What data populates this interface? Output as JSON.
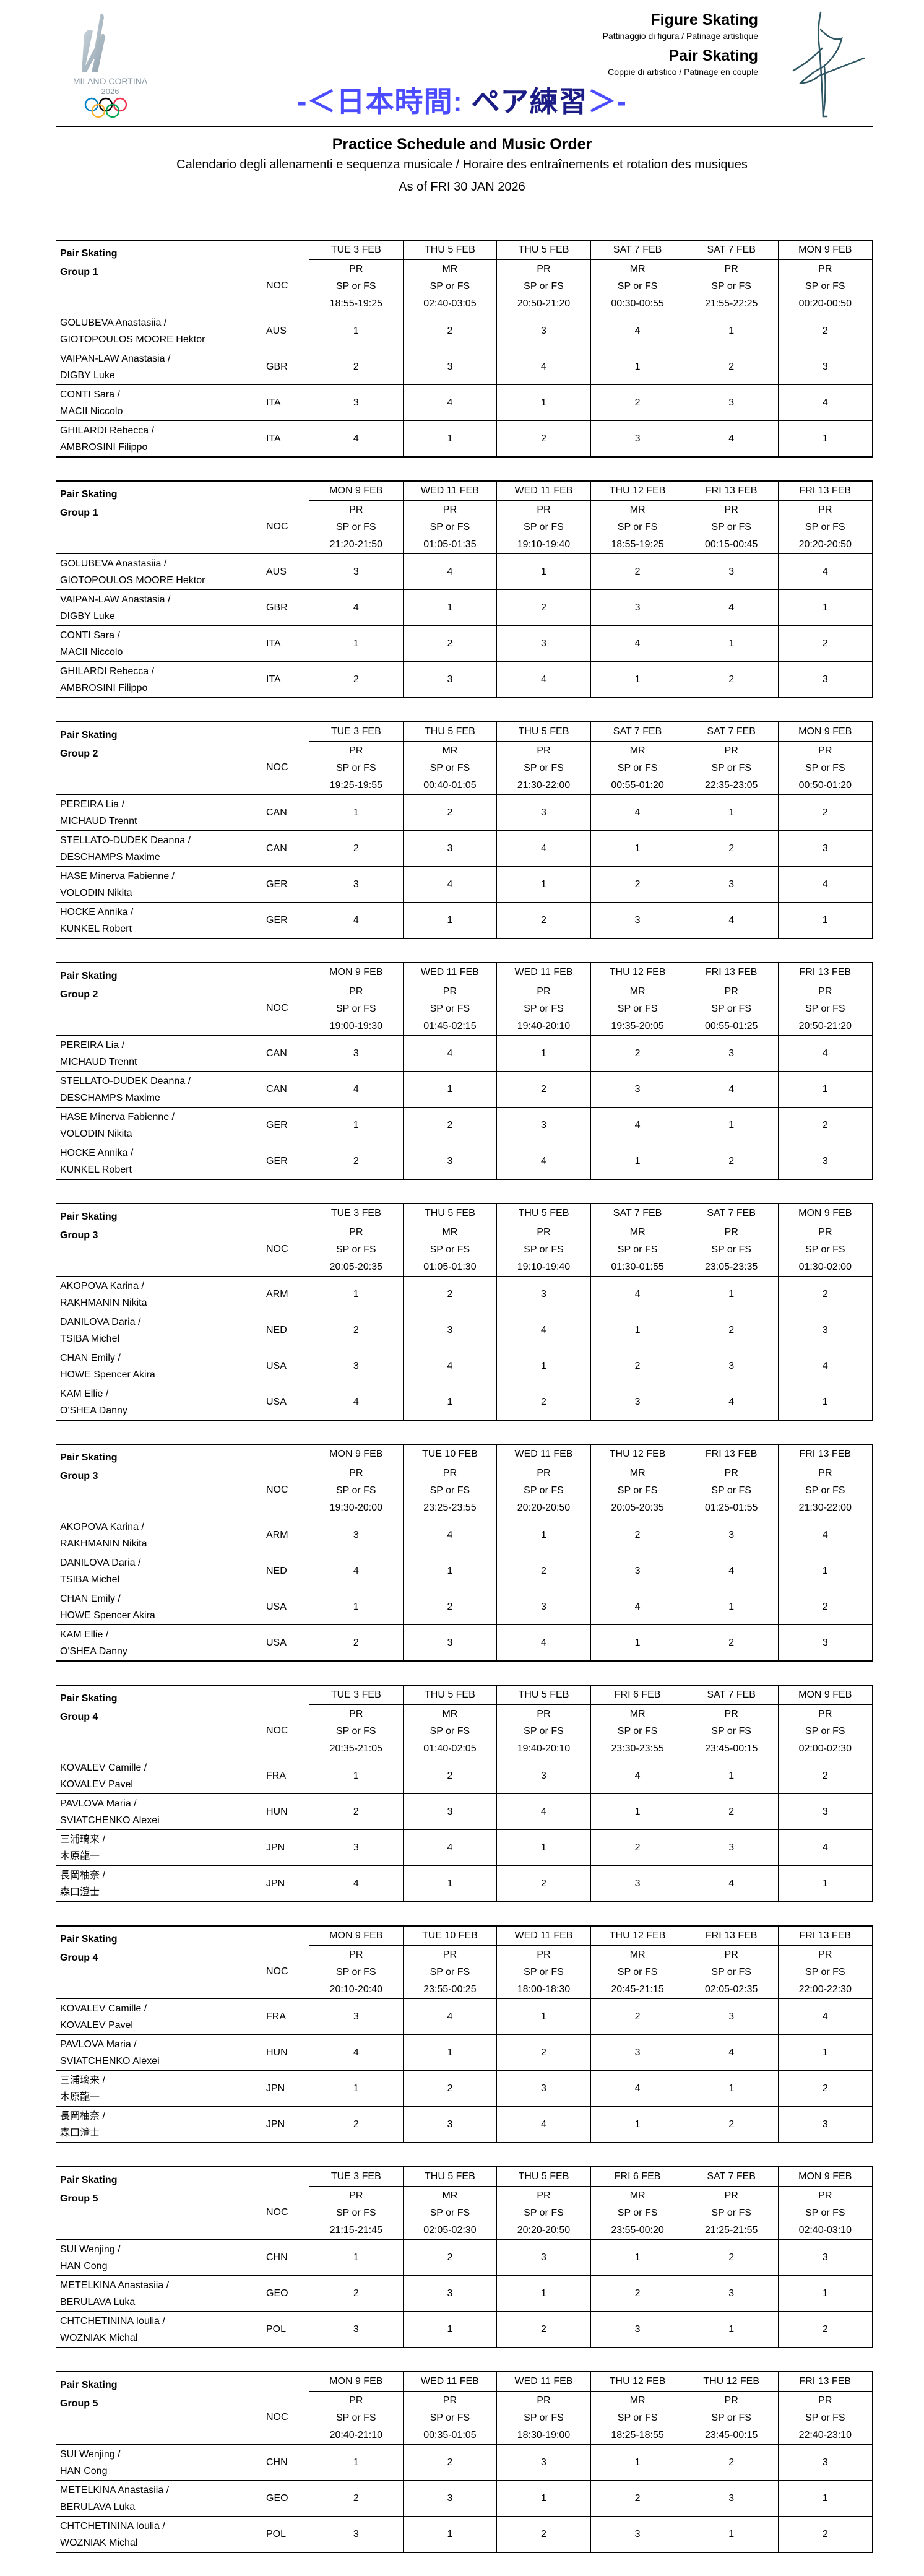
{
  "header": {
    "logo_text": "MILANO CORTINA 2026",
    "discipline": "Figure Skating",
    "discipline_sub": "Pattinaggio di figura / Patinage artistique",
    "event": "Pair Skating",
    "event_sub": "Coppie di artistico / Patinage en couple",
    "banner_left": "-＜日本時間: ",
    "banner_mid": "ペア練習",
    "banner_right": "＞-",
    "title": "Practice Schedule and Music Order",
    "subtitle": "Calendario degli allenamenti e sequenza musicale / Horaire des entraînements et rotation des musiques",
    "as_of": "As of FRI 30 JAN 2026",
    "colors": {
      "banner_light": "#4b4bff",
      "banner_dark": "#1c1c86"
    }
  },
  "labels": {
    "event": "Pair Skating",
    "noc": "NOC"
  },
  "tables": [
    {
      "group": "Group 1",
      "columns": [
        {
          "date": "TUE 3 FEB",
          "type": "PR",
          "seg": "SP or FS",
          "time": "18:55-19:25"
        },
        {
          "date": "THU 5 FEB",
          "type": "MR",
          "seg": "SP or FS",
          "time": "02:40-03:05"
        },
        {
          "date": "THU 5 FEB",
          "type": "PR",
          "seg": "SP or FS",
          "time": "20:50-21:20"
        },
        {
          "date": "SAT 7 FEB",
          "type": "MR",
          "seg": "SP or FS",
          "time": "00:30-00:55"
        },
        {
          "date": "SAT 7 FEB",
          "type": "PR",
          "seg": "SP or FS",
          "time": "21:55-22:25"
        },
        {
          "date": "MON 9 FEB",
          "type": "PR",
          "seg": "SP or FS",
          "time": "00:20-00:50"
        }
      ],
      "rows": [
        {
          "line1": "GOLUBEVA Anastasiia /",
          "line2": "GIOTOPOULOS MOORE Hektor",
          "noc": "AUS",
          "order": [
            "1",
            "2",
            "3",
            "4",
            "1",
            "2"
          ]
        },
        {
          "line1": "VAIPAN-LAW Anastasia /",
          "line2": "DIGBY Luke",
          "noc": "GBR",
          "order": [
            "2",
            "3",
            "4",
            "1",
            "2",
            "3"
          ]
        },
        {
          "line1": "CONTI Sara /",
          "line2": "MACII Niccolo",
          "noc": "ITA",
          "order": [
            "3",
            "4",
            "1",
            "2",
            "3",
            "4"
          ]
        },
        {
          "line1": "GHILARDI Rebecca /",
          "line2": "AMBROSINI Filippo",
          "noc": "ITA",
          "order": [
            "4",
            "1",
            "2",
            "3",
            "4",
            "1"
          ]
        }
      ]
    },
    {
      "group": "Group 1",
      "columns": [
        {
          "date": "MON 9 FEB",
          "type": "PR",
          "seg": "SP or FS",
          "time": "21:20-21:50"
        },
        {
          "date": "WED 11 FEB",
          "type": "PR",
          "seg": "SP or FS",
          "time": "01:05-01:35"
        },
        {
          "date": "WED 11 FEB",
          "type": "PR",
          "seg": "SP or FS",
          "time": "19:10-19:40"
        },
        {
          "date": "THU 12 FEB",
          "type": "MR",
          "seg": "SP or FS",
          "time": "18:55-19:25"
        },
        {
          "date": "FRI 13 FEB",
          "type": "PR",
          "seg": "SP or FS",
          "time": "00:15-00:45"
        },
        {
          "date": "FRI 13 FEB",
          "type": "PR",
          "seg": "SP or FS",
          "time": "20:20-20:50"
        }
      ],
      "rows": [
        {
          "line1": "GOLUBEVA Anastasiia /",
          "line2": "GIOTOPOULOS MOORE Hektor",
          "noc": "AUS",
          "order": [
            "3",
            "4",
            "1",
            "2",
            "3",
            "4"
          ]
        },
        {
          "line1": "VAIPAN-LAW Anastasia /",
          "line2": "DIGBY Luke",
          "noc": "GBR",
          "order": [
            "4",
            "1",
            "2",
            "3",
            "4",
            "1"
          ]
        },
        {
          "line1": "CONTI Sara /",
          "line2": "MACII Niccolo",
          "noc": "ITA",
          "order": [
            "1",
            "2",
            "3",
            "4",
            "1",
            "2"
          ]
        },
        {
          "line1": "GHILARDI Rebecca /",
          "line2": "AMBROSINI Filippo",
          "noc": "ITA",
          "order": [
            "2",
            "3",
            "4",
            "1",
            "2",
            "3"
          ]
        }
      ]
    },
    {
      "group": "Group 2",
      "columns": [
        {
          "date": "TUE 3 FEB",
          "type": "PR",
          "seg": "SP or FS",
          "time": "19:25-19:55"
        },
        {
          "date": "THU 5 FEB",
          "type": "MR",
          "seg": "SP or FS",
          "time": "00:40-01:05"
        },
        {
          "date": "THU 5 FEB",
          "type": "PR",
          "seg": "SP or FS",
          "time": "21:30-22:00"
        },
        {
          "date": "SAT 7 FEB",
          "type": "MR",
          "seg": "SP or FS",
          "time": "00:55-01:20"
        },
        {
          "date": "SAT 7 FEB",
          "type": "PR",
          "seg": "SP or FS",
          "time": "22:35-23:05"
        },
        {
          "date": "MON 9 FEB",
          "type": "PR",
          "seg": "SP or FS",
          "time": "00:50-01:20"
        }
      ],
      "rows": [
        {
          "line1": "PEREIRA Lia /",
          "line2": "MICHAUD Trennt",
          "noc": "CAN",
          "order": [
            "1",
            "2",
            "3",
            "4",
            "1",
            "2"
          ]
        },
        {
          "line1": "STELLATO-DUDEK Deanna /",
          "line2": "DESCHAMPS Maxime",
          "noc": "CAN",
          "order": [
            "2",
            "3",
            "4",
            "1",
            "2",
            "3"
          ]
        },
        {
          "line1": "HASE Minerva Fabienne /",
          "line2": "VOLODIN Nikita",
          "noc": "GER",
          "order": [
            "3",
            "4",
            "1",
            "2",
            "3",
            "4"
          ]
        },
        {
          "line1": "HOCKE Annika /",
          "line2": "KUNKEL Robert",
          "noc": "GER",
          "order": [
            "4",
            "1",
            "2",
            "3",
            "4",
            "1"
          ]
        }
      ]
    },
    {
      "group": "Group 2",
      "columns": [
        {
          "date": "MON 9 FEB",
          "type": "PR",
          "seg": "SP or FS",
          "time": "19:00-19:30"
        },
        {
          "date": "WED 11 FEB",
          "type": "PR",
          "seg": "SP or FS",
          "time": "01:45-02:15"
        },
        {
          "date": "WED 11 FEB",
          "type": "PR",
          "seg": "SP or FS",
          "time": "19:40-20:10"
        },
        {
          "date": "THU 12 FEB",
          "type": "MR",
          "seg": "SP or FS",
          "time": "19:35-20:05"
        },
        {
          "date": "FRI 13 FEB",
          "type": "PR",
          "seg": "SP or FS",
          "time": "00:55-01:25"
        },
        {
          "date": "FRI 13 FEB",
          "type": "PR",
          "seg": "SP or FS",
          "time": "20:50-21:20"
        }
      ],
      "rows": [
        {
          "line1": "PEREIRA Lia /",
          "line2": "MICHAUD Trennt",
          "noc": "CAN",
          "order": [
            "3",
            "4",
            "1",
            "2",
            "3",
            "4"
          ]
        },
        {
          "line1": "STELLATO-DUDEK Deanna /",
          "line2": "DESCHAMPS Maxime",
          "noc": "CAN",
          "order": [
            "4",
            "1",
            "2",
            "3",
            "4",
            "1"
          ]
        },
        {
          "line1": "HASE Minerva Fabienne /",
          "line2": "VOLODIN Nikita",
          "noc": "GER",
          "order": [
            "1",
            "2",
            "3",
            "4",
            "1",
            "2"
          ]
        },
        {
          "line1": "HOCKE Annika /",
          "line2": "KUNKEL Robert",
          "noc": "GER",
          "order": [
            "2",
            "3",
            "4",
            "1",
            "2",
            "3"
          ]
        }
      ]
    },
    {
      "group": "Group 3",
      "columns": [
        {
          "date": "TUE 3 FEB",
          "type": "PR",
          "seg": "SP or FS",
          "time": "20:05-20:35"
        },
        {
          "date": "THU 5 FEB",
          "type": "MR",
          "seg": "SP or FS",
          "time": "01:05-01:30"
        },
        {
          "date": "THU 5 FEB",
          "type": "PR",
          "seg": "SP or FS",
          "time": "19:10-19:40"
        },
        {
          "date": "SAT 7 FEB",
          "type": "MR",
          "seg": "SP or FS",
          "time": "01:30-01:55"
        },
        {
          "date": "SAT 7 FEB",
          "type": "PR",
          "seg": "SP or FS",
          "time": "23:05-23:35"
        },
        {
          "date": "MON 9 FEB",
          "type": "PR",
          "seg": "SP or FS",
          "time": "01:30-02:00"
        }
      ],
      "rows": [
        {
          "line1": "AKOPOVA Karina /",
          "line2": "RAKHMANIN Nikita",
          "noc": "ARM",
          "order": [
            "1",
            "2",
            "3",
            "4",
            "1",
            "2"
          ]
        },
        {
          "line1": "DANILOVA Daria /",
          "line2": "TSIBA Michel",
          "noc": "NED",
          "order": [
            "2",
            "3",
            "4",
            "1",
            "2",
            "3"
          ]
        },
        {
          "line1": "CHAN Emily /",
          "line2": "HOWE Spencer Akira",
          "noc": "USA",
          "order": [
            "3",
            "4",
            "1",
            "2",
            "3",
            "4"
          ]
        },
        {
          "line1": "KAM Ellie /",
          "line2": "O'SHEA Danny",
          "noc": "USA",
          "order": [
            "4",
            "1",
            "2",
            "3",
            "4",
            "1"
          ]
        }
      ]
    },
    {
      "group": "Group 3",
      "columns": [
        {
          "date": "MON 9 FEB",
          "type": "PR",
          "seg": "SP or FS",
          "time": "19:30-20:00"
        },
        {
          "date": "TUE 10 FEB",
          "type": "PR",
          "seg": "SP or FS",
          "time": "23:25-23:55"
        },
        {
          "date": "WED 11 FEB",
          "type": "PR",
          "seg": "SP or FS",
          "time": "20:20-20:50"
        },
        {
          "date": "THU 12 FEB",
          "type": "MR",
          "seg": "SP or FS",
          "time": "20:05-20:35"
        },
        {
          "date": "FRI 13 FEB",
          "type": "PR",
          "seg": "SP or FS",
          "time": "01:25-01:55"
        },
        {
          "date": "FRI 13 FEB",
          "type": "PR",
          "seg": "SP or FS",
          "time": "21:30-22:00"
        }
      ],
      "rows": [
        {
          "line1": "AKOPOVA Karina /",
          "line2": "RAKHMANIN Nikita",
          "noc": "ARM",
          "order": [
            "3",
            "4",
            "1",
            "2",
            "3",
            "4"
          ]
        },
        {
          "line1": "DANILOVA Daria /",
          "line2": "TSIBA Michel",
          "noc": "NED",
          "order": [
            "4",
            "1",
            "2",
            "3",
            "4",
            "1"
          ]
        },
        {
          "line1": "CHAN Emily /",
          "line2": "HOWE Spencer Akira",
          "noc": "USA",
          "order": [
            "1",
            "2",
            "3",
            "4",
            "1",
            "2"
          ]
        },
        {
          "line1": "KAM Ellie /",
          "line2": "O'SHEA Danny",
          "noc": "USA",
          "order": [
            "2",
            "3",
            "4",
            "1",
            "2",
            "3"
          ]
        }
      ]
    },
    {
      "group": "Group 4",
      "columns": [
        {
          "date": "TUE 3 FEB",
          "type": "PR",
          "seg": "SP or FS",
          "time": "20:35-21:05"
        },
        {
          "date": "THU 5 FEB",
          "type": "MR",
          "seg": "SP or FS",
          "time": "01:40-02:05"
        },
        {
          "date": "THU 5 FEB",
          "type": "PR",
          "seg": "SP or FS",
          "time": "19:40-20:10"
        },
        {
          "date": "FRI 6 FEB",
          "type": "MR",
          "seg": "SP or FS",
          "time": "23:30-23:55"
        },
        {
          "date": "SAT 7 FEB",
          "type": "PR",
          "seg": "SP or FS",
          "time": "23:45-00:15"
        },
        {
          "date": "MON 9 FEB",
          "type": "PR",
          "seg": "SP or FS",
          "time": "02:00-02:30"
        }
      ],
      "rows": [
        {
          "line1": "KOVALEV Camille /",
          "line2": "KOVALEV Pavel",
          "noc": "FRA",
          "order": [
            "1",
            "2",
            "3",
            "4",
            "1",
            "2"
          ]
        },
        {
          "line1": "PAVLOVA Maria /",
          "line2": "SVIATCHENKO Alexei",
          "noc": "HUN",
          "order": [
            "2",
            "3",
            "4",
            "1",
            "2",
            "3"
          ]
        },
        {
          "line1": "三浦璃来 /",
          "line2": "木原龍一",
          "noc": "JPN",
          "order": [
            "3",
            "4",
            "1",
            "2",
            "3",
            "4"
          ]
        },
        {
          "line1": "長岡柚奈 /",
          "line2": "森口澄士",
          "noc": "JPN",
          "order": [
            "4",
            "1",
            "2",
            "3",
            "4",
            "1"
          ]
        }
      ]
    },
    {
      "group": "Group 4",
      "columns": [
        {
          "date": "MON 9 FEB",
          "type": "PR",
          "seg": "SP or FS",
          "time": "20:10-20:40"
        },
        {
          "date": "TUE 10 FEB",
          "type": "PR",
          "seg": "SP or FS",
          "time": "23:55-00:25"
        },
        {
          "date": "WED 11 FEB",
          "type": "PR",
          "seg": "SP or FS",
          "time": "18:00-18:30"
        },
        {
          "date": "THU 12 FEB",
          "type": "MR",
          "seg": "SP or FS",
          "time": "20:45-21:15"
        },
        {
          "date": "FRI 13 FEB",
          "type": "PR",
          "seg": "SP or FS",
          "time": "02:05-02:35"
        },
        {
          "date": "FRI 13 FEB",
          "type": "PR",
          "seg": "SP or FS",
          "time": "22:00-22:30"
        }
      ],
      "rows": [
        {
          "line1": "KOVALEV Camille /",
          "line2": "KOVALEV Pavel",
          "noc": "FRA",
          "order": [
            "3",
            "4",
            "1",
            "2",
            "3",
            "4"
          ]
        },
        {
          "line1": "PAVLOVA Maria /",
          "line2": "SVIATCHENKO Alexei",
          "noc": "HUN",
          "order": [
            "4",
            "1",
            "2",
            "3",
            "4",
            "1"
          ]
        },
        {
          "line1": "三浦璃来 /",
          "line2": "木原龍一",
          "noc": "JPN",
          "order": [
            "1",
            "2",
            "3",
            "4",
            "1",
            "2"
          ]
        },
        {
          "line1": "長岡柚奈 /",
          "line2": "森口澄士",
          "noc": "JPN",
          "order": [
            "2",
            "3",
            "4",
            "1",
            "2",
            "3"
          ]
        }
      ]
    },
    {
      "group": "Group 5",
      "columns": [
        {
          "date": "TUE 3 FEB",
          "type": "PR",
          "seg": "SP or FS",
          "time": "21:15-21:45"
        },
        {
          "date": "THU 5 FEB",
          "type": "MR",
          "seg": "SP or FS",
          "time": "02:05-02:30"
        },
        {
          "date": "THU 5 FEB",
          "type": "PR",
          "seg": "SP or FS",
          "time": "20:20-20:50"
        },
        {
          "date": "FRI 6 FEB",
          "type": "MR",
          "seg": "SP or FS",
          "time": "23:55-00:20"
        },
        {
          "date": "SAT 7 FEB",
          "type": "PR",
          "seg": "SP or FS",
          "time": "21:25-21:55"
        },
        {
          "date": "MON 9 FEB",
          "type": "PR",
          "seg": "SP or FS",
          "time": "02:40-03:10"
        }
      ],
      "rows": [
        {
          "line1": "SUI Wenjing /",
          "line2": "HAN Cong",
          "noc": "CHN",
          "order": [
            "1",
            "2",
            "3",
            "1",
            "2",
            "3"
          ]
        },
        {
          "line1": "METELKINA Anastasiia /",
          "line2": "BERULAVA Luka",
          "noc": "GEO",
          "order": [
            "2",
            "3",
            "1",
            "2",
            "3",
            "1"
          ]
        },
        {
          "line1": "CHTCHETININA Ioulia /",
          "line2": "WOZNIAK Michal",
          "noc": "POL",
          "order": [
            "3",
            "1",
            "2",
            "3",
            "1",
            "2"
          ]
        }
      ]
    },
    {
      "group": "Group 5",
      "columns": [
        {
          "date": "MON 9 FEB",
          "type": "PR",
          "seg": "SP or FS",
          "time": "20:40-21:10"
        },
        {
          "date": "WED 11 FEB",
          "type": "PR",
          "seg": "SP or FS",
          "time": "00:35-01:05"
        },
        {
          "date": "WED 11 FEB",
          "type": "PR",
          "seg": "SP or FS",
          "time": "18:30-19:00"
        },
        {
          "date": "THU 12 FEB",
          "type": "MR",
          "seg": "SP or FS",
          "time": "18:25-18:55"
        },
        {
          "date": "THU 12 FEB",
          "type": "PR",
          "seg": "SP or FS",
          "time": "23:45-00:15"
        },
        {
          "date": "FRI 13 FEB",
          "type": "PR",
          "seg": "SP or FS",
          "time": "22:40-23:10"
        }
      ],
      "rows": [
        {
          "line1": "SUI Wenjing /",
          "line2": "HAN Cong",
          "noc": "CHN",
          "order": [
            "1",
            "2",
            "3",
            "1",
            "2",
            "3"
          ]
        },
        {
          "line1": "METELKINA Anastasiia /",
          "line2": "BERULAVA Luka",
          "noc": "GEO",
          "order": [
            "2",
            "3",
            "1",
            "2",
            "3",
            "1"
          ]
        },
        {
          "line1": "CHTCHETININA Ioulia /",
          "line2": "WOZNIAK Michal",
          "noc": "POL",
          "order": [
            "3",
            "1",
            "2",
            "3",
            "1",
            "2"
          ]
        }
      ]
    }
  ]
}
